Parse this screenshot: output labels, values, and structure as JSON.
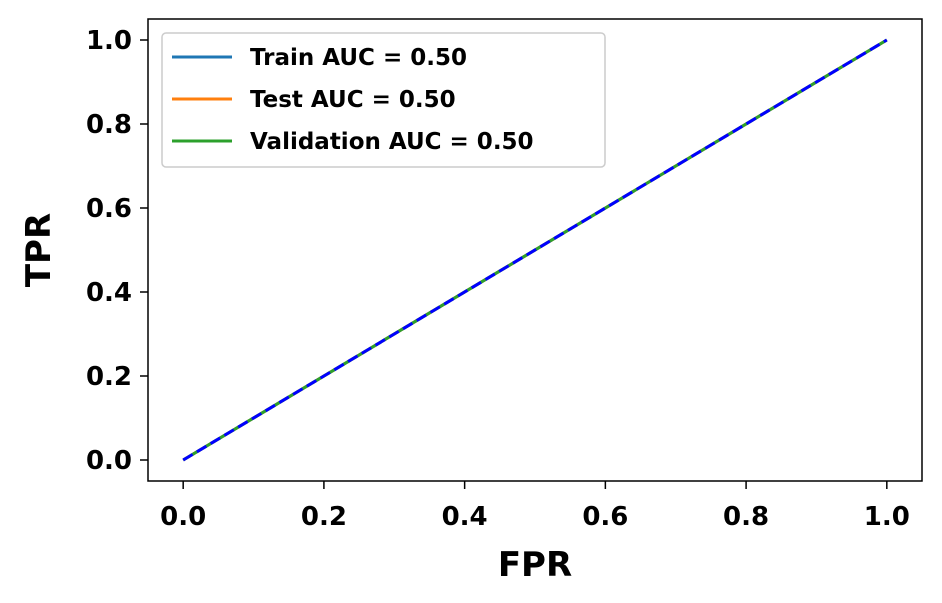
{
  "chart_data": {
    "type": "line",
    "xlabel": "FPR",
    "ylabel": "TPR",
    "xlim": [
      -0.05,
      1.05
    ],
    "ylim": [
      -0.05,
      1.05
    ],
    "xticks": [
      "0.0",
      "0.2",
      "0.4",
      "0.6",
      "0.8",
      "1.0"
    ],
    "yticks": [
      "0.0",
      "0.2",
      "0.4",
      "0.6",
      "0.8",
      "1.0"
    ],
    "grid": false,
    "legend_placement": "upper-left",
    "series": [
      {
        "name": "Train AUC = 0.50",
        "color": "#1f77b4",
        "x": [
          0,
          1
        ],
        "y": [
          0,
          1
        ]
      },
      {
        "name": "Test AUC = 0.50",
        "color": "#ff7f0e",
        "x": [
          0,
          1
        ],
        "y": [
          0,
          1
        ]
      },
      {
        "name": "Validation AUC = 0.50",
        "color": "#2ca02c",
        "x": [
          0,
          1
        ],
        "y": [
          0,
          1
        ]
      }
    ],
    "reference_line": {
      "color": "#0000ff",
      "style": "dashed",
      "x": [
        0,
        1
      ],
      "y": [
        0,
        1
      ]
    }
  }
}
